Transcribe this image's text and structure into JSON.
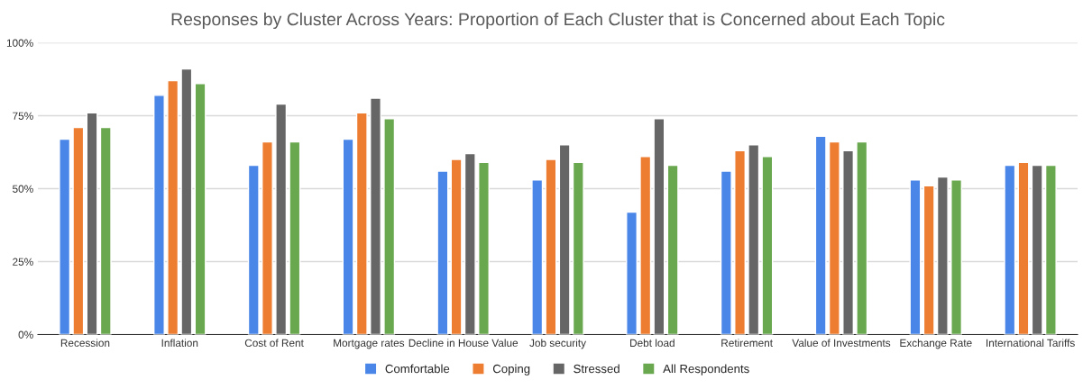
{
  "chart_data": {
    "type": "bar",
    "title": "Responses by Cluster Across Years: Proportion of Each Cluster that is Concerned about Each Topic",
    "categories": [
      "Recession",
      "Inflation",
      "Cost of Rent",
      "Mortgage rates",
      "Decline in House Value",
      "Job security",
      "Debt load",
      "Retirement",
      "Value of Investments",
      "Exchange Rate",
      "International Tariffs"
    ],
    "series": [
      {
        "name": "Comfortable",
        "color": "#4a86e8",
        "values": [
          67,
          82,
          58,
          67,
          56,
          53,
          42,
          56,
          68,
          53,
          58
        ]
      },
      {
        "name": "Coping",
        "color": "#ed7d31",
        "values": [
          71,
          87,
          66,
          76,
          60,
          60,
          61,
          63,
          66,
          51,
          59
        ]
      },
      {
        "name": "Stressed",
        "color": "#666666",
        "values": [
          76,
          91,
          79,
          81,
          62,
          65,
          74,
          65,
          63,
          54,
          58
        ]
      },
      {
        "name": "All Respondents",
        "color": "#6aa84f",
        "values": [
          71,
          86,
          66,
          74,
          59,
          59,
          58,
          61,
          66,
          53,
          58
        ]
      }
    ],
    "ylim": [
      0,
      100
    ],
    "yticks": [
      {
        "value": 0,
        "label": "0%"
      },
      {
        "value": 25,
        "label": "25%"
      },
      {
        "value": 50,
        "label": "50%"
      },
      {
        "value": 75,
        "label": "75%"
      },
      {
        "value": 100,
        "label": "100%"
      }
    ],
    "grid": "y",
    "legend": "bottom"
  }
}
